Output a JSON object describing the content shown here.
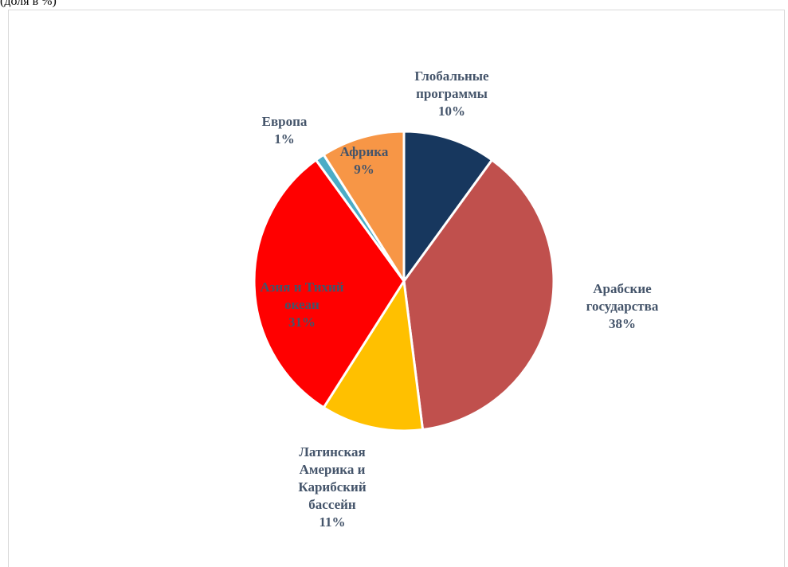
{
  "page": {
    "top_fragment": "(доля в %)"
  },
  "chart_data": {
    "type": "pie",
    "title": "",
    "start_angle_deg": 0,
    "direction": "clockwise",
    "label_color": "#44546a",
    "slice_border_color": "#ffffff",
    "slices": [
      {
        "label_lines": [
          "Глобальные",
          "программы"
        ],
        "percent_label": "10%",
        "value": 10,
        "color": "#17375e"
      },
      {
        "label_lines": [
          "Арабские",
          "государства"
        ],
        "percent_label": "38%",
        "value": 38,
        "color": "#c0504d"
      },
      {
        "label_lines": [
          "Латинская",
          "Америка и",
          "Карибский",
          "бассейн"
        ],
        "percent_label": "11%",
        "value": 11,
        "color": "#ffc000"
      },
      {
        "label_lines": [
          "Азия и Тихий",
          "океан"
        ],
        "percent_label": "31%",
        "value": 31,
        "color": "#ff0000"
      },
      {
        "label_lines": [
          "Европа"
        ],
        "percent_label": "1%",
        "value": 1,
        "color": "#4bacc6"
      },
      {
        "label_lines": [
          "Африка"
        ],
        "percent_label": "9%",
        "value": 9,
        "color": "#f79646"
      }
    ]
  }
}
